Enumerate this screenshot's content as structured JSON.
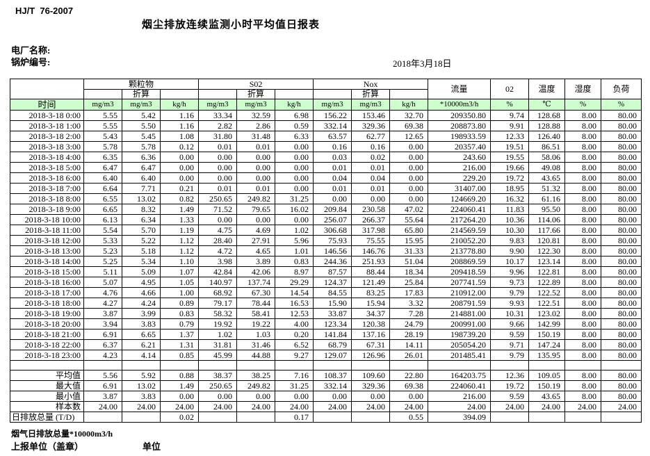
{
  "page": {
    "doc_code": "HJ/T  76-2007",
    "title": "烟尘排放连续监测小时平均值日报表",
    "plant_label": "电厂名称:",
    "boiler_label": "锅炉编号:",
    "date": "2018年3月18日"
  },
  "table": {
    "time_header": "时间",
    "zhesuan_label": "折算",
    "group_labels": [
      "颗粒物",
      "S02",
      "Nox"
    ],
    "flow_header": "流量",
    "o2_header": "02",
    "temp_header": "温度",
    "humidity_header": "湿度",
    "load_header": "负荷",
    "units": [
      "mg/m3",
      "mg/m3",
      "kg/h",
      "mg/m3",
      "mg/m3",
      "kg/h",
      "mg/m3",
      "mg/m3",
      "kg/h",
      "*10000m3/h",
      "%",
      "℃",
      "%",
      "%"
    ],
    "rows": [
      {
        "time": "2018-3-18 0:00",
        "values": [
          "5.55",
          "5.42",
          "1.16",
          "33.34",
          "32.59",
          "6.98",
          "156.22",
          "153.46",
          "32.70",
          "209350.80",
          "9.74",
          "128.68",
          "8.00",
          "80.00"
        ]
      },
      {
        "time": "2018-3-18 1:00",
        "values": [
          "5.55",
          "5.50",
          "1.16",
          "2.82",
          "2.86",
          "0.59",
          "332.14",
          "329.36",
          "69.38",
          "208873.80",
          "9.91",
          "128.88",
          "8.00",
          "80.00"
        ]
      },
      {
        "time": "2018-3-18 2:00",
        "values": [
          "5.43",
          "5.45",
          "1.08",
          "31.80",
          "31.48",
          "6.33",
          "63.57",
          "62.77",
          "12.65",
          "198933.59",
          "12.33",
          "126.40",
          "8.00",
          "80.00"
        ]
      },
      {
        "time": "2018-3-18 3:00",
        "values": [
          "5.78",
          "5.78",
          "0.12",
          "0.01",
          "0.01",
          "0.00",
          "0.16",
          "0.16",
          "0.00",
          "20357.40",
          "19.51",
          "86.51",
          "8.00",
          "80.00"
        ]
      },
      {
        "time": "2018-3-18 4:00",
        "values": [
          "6.35",
          "6.36",
          "0.00",
          "0.00",
          "0.00",
          "0.00",
          "0.03",
          "0.02",
          "0.00",
          "243.60",
          "19.55",
          "58.06",
          "8.00",
          "80.00"
        ]
      },
      {
        "time": "2018-3-18 5:00",
        "values": [
          "6.47",
          "6.47",
          "0.00",
          "0.00",
          "0.00",
          "0.00",
          "0.01",
          "0.01",
          "0.00",
          "216.00",
          "19.66",
          "49.08",
          "8.00",
          "80.00"
        ]
      },
      {
        "time": "2018-3-18 6:00",
        "values": [
          "6.40",
          "6.40",
          "0.00",
          "0.00",
          "0.00",
          "0.00",
          "0.04",
          "0.04",
          "0.00",
          "229.20",
          "19.72",
          "43.65",
          "8.00",
          "80.00"
        ]
      },
      {
        "time": "2018-3-18 7:00",
        "values": [
          "6.64",
          "7.71",
          "0.21",
          "0.01",
          "0.01",
          "0.00",
          "0.01",
          "0.01",
          "0.00",
          "31407.00",
          "18.95",
          "51.32",
          "8.00",
          "80.00"
        ]
      },
      {
        "time": "2018-3-18 8:00",
        "values": [
          "6.55",
          "13.02",
          "0.82",
          "250.65",
          "249.82",
          "31.25",
          "0.00",
          "0.00",
          "0.00",
          "124669.20",
          "16.32",
          "61.16",
          "8.00",
          "80.00"
        ]
      },
      {
        "time": "2018-3-18 9:00",
        "values": [
          "6.65",
          "8.32",
          "1.49",
          "71.52",
          "79.65",
          "16.02",
          "209.84",
          "230.58",
          "47.02",
          "224060.41",
          "11.83",
          "95.50",
          "8.00",
          "80.00"
        ]
      },
      {
        "time": "2018-3-18 10:00",
        "values": [
          "6.13",
          "6.34",
          "1.33",
          "0.00",
          "0.00",
          "0.00",
          "256.07",
          "266.37",
          "55.64",
          "217264.20",
          "10.36",
          "114.06",
          "8.00",
          "80.00"
        ]
      },
      {
        "time": "2018-3-18 11:00",
        "values": [
          "5.54",
          "5.70",
          "1.19",
          "4.75",
          "4.69",
          "1.02",
          "306.68",
          "317.98",
          "65.80",
          "214569.59",
          "10.30",
          "117.66",
          "8.00",
          "80.00"
        ]
      },
      {
        "time": "2018-3-18 12:00",
        "values": [
          "5.33",
          "5.22",
          "1.12",
          "28.40",
          "27.91",
          "5.96",
          "75.93",
          "75.55",
          "15.95",
          "210052.20",
          "9.83",
          "120.81",
          "8.00",
          "80.00"
        ]
      },
      {
        "time": "2018-3-18 13:00",
        "values": [
          "5.23",
          "5.18",
          "1.12",
          "4.72",
          "4.65",
          "1.01",
          "146.56",
          "146.76",
          "31.33",
          "213778.80",
          "9.90",
          "122.30",
          "8.00",
          "80.00"
        ]
      },
      {
        "time": "2018-3-18 14:00",
        "values": [
          "5.25",
          "5.34",
          "1.10",
          "3.98",
          "3.89",
          "0.83",
          "244.36",
          "251.93",
          "51.04",
          "208869.59",
          "10.17",
          "123.14",
          "8.00",
          "80.00"
        ]
      },
      {
        "time": "2018-3-18 15:00",
        "values": [
          "5.11",
          "5.09",
          "1.07",
          "42.84",
          "42.06",
          "8.97",
          "87.57",
          "88.44",
          "18.34",
          "209418.59",
          "9.96",
          "122.81",
          "8.00",
          "80.00"
        ]
      },
      {
        "time": "2018-3-18 16:00",
        "values": [
          "5.07",
          "4.95",
          "1.05",
          "140.97",
          "137.74",
          "29.29",
          "124.37",
          "121.49",
          "25.84",
          "207741.59",
          "9.73",
          "122.89",
          "8.00",
          "80.00"
        ]
      },
      {
        "time": "2018-3-18 17:00",
        "values": [
          "4.76",
          "4.66",
          "1.00",
          "68.92",
          "67.30",
          "14.54",
          "84.55",
          "83.25",
          "17.83",
          "210912.00",
          "9.79",
          "122.52",
          "8.00",
          "80.00"
        ]
      },
      {
        "time": "2018-3-18 18:00",
        "values": [
          "4.27",
          "4.24",
          "0.89",
          "79.17",
          "78.44",
          "16.53",
          "15.90",
          "15.94",
          "3.32",
          "208791.59",
          "9.93",
          "122.51",
          "8.00",
          "80.00"
        ]
      },
      {
        "time": "2018-3-18 19:00",
        "values": [
          "3.87",
          "3.99",
          "0.83",
          "58.32",
          "58.41",
          "12.53",
          "33.87",
          "34.37",
          "7.28",
          "214881.00",
          "10.31",
          "123.02",
          "8.00",
          "80.00"
        ]
      },
      {
        "time": "2018-3-18 20:00",
        "values": [
          "3.94",
          "3.83",
          "0.79",
          "19.92",
          "19.22",
          "4.00",
          "123.34",
          "120.38",
          "24.79",
          "200991.00",
          "9.66",
          "142.99",
          "8.00",
          "80.00"
        ]
      },
      {
        "time": "2018-3-18 21:00",
        "values": [
          "6.91",
          "6.65",
          "1.37",
          "1.02",
          "1.03",
          "0.20",
          "141.84",
          "137.16",
          "28.19",
          "198739.20",
          "9.59",
          "150.19",
          "8.00",
          "80.00"
        ]
      },
      {
        "time": "2018-3-18 22:00",
        "values": [
          "6.37",
          "6.21",
          "1.31",
          "31.81",
          "31.46",
          "6.52",
          "68.79",
          "67.31",
          "14.11",
          "205054.20",
          "9.71",
          "147.24",
          "8.00",
          "80.00"
        ]
      },
      {
        "time": "2018-3-18 23:00",
        "values": [
          "4.23",
          "4.14",
          "0.85",
          "45.99",
          "44.88",
          "9.27",
          "129.07",
          "126.96",
          "26.01",
          "201485.41",
          "9.79",
          "135.95",
          "8.00",
          "80.00"
        ]
      }
    ],
    "summary": [
      {
        "label": "平均值",
        "values": [
          "5.56",
          "5.92",
          "0.88",
          "38.37",
          "38.25",
          "7.16",
          "108.37",
          "109.60",
          "22.80",
          "164203.75",
          "12.36",
          "109.05",
          "8.00",
          "80.00"
        ]
      },
      {
        "label": "最大值",
        "values": [
          "6.91",
          "13.02",
          "1.49",
          "250.65",
          "249.82",
          "31.25",
          "332.14",
          "329.36",
          "69.38",
          "224060.41",
          "19.72",
          "150.19",
          "8.00",
          "80.00"
        ]
      },
      {
        "label": "最小值",
        "values": [
          "3.87",
          "3.83",
          "0.00",
          "0.00",
          "0.00",
          "0.00",
          "0.00",
          "0.00",
          "0.00",
          "216.00",
          "9.59",
          "43.65",
          "8.00",
          "80.00"
        ]
      },
      {
        "label": "样本数",
        "values": [
          "24.00",
          "24.00",
          "24.00",
          "24.00",
          "24.00",
          "24.00",
          "24.00",
          "24.00",
          "24.00",
          "24.00",
          "24.00",
          "24.00",
          "24.00",
          "24.00"
        ]
      },
      {
        "label": "日排放总量 (T/D)",
        "values": [
          "",
          "",
          "0.02",
          "",
          "",
          "0.17",
          "",
          "",
          "0.55",
          "394.09",
          "",
          "",
          "",
          ""
        ]
      }
    ]
  },
  "footer": {
    "flue_total_label": "烟气日排放总量*10000m3/h",
    "report_unit_label": "上报单位（盖章）",
    "unit_label": "单位"
  }
}
